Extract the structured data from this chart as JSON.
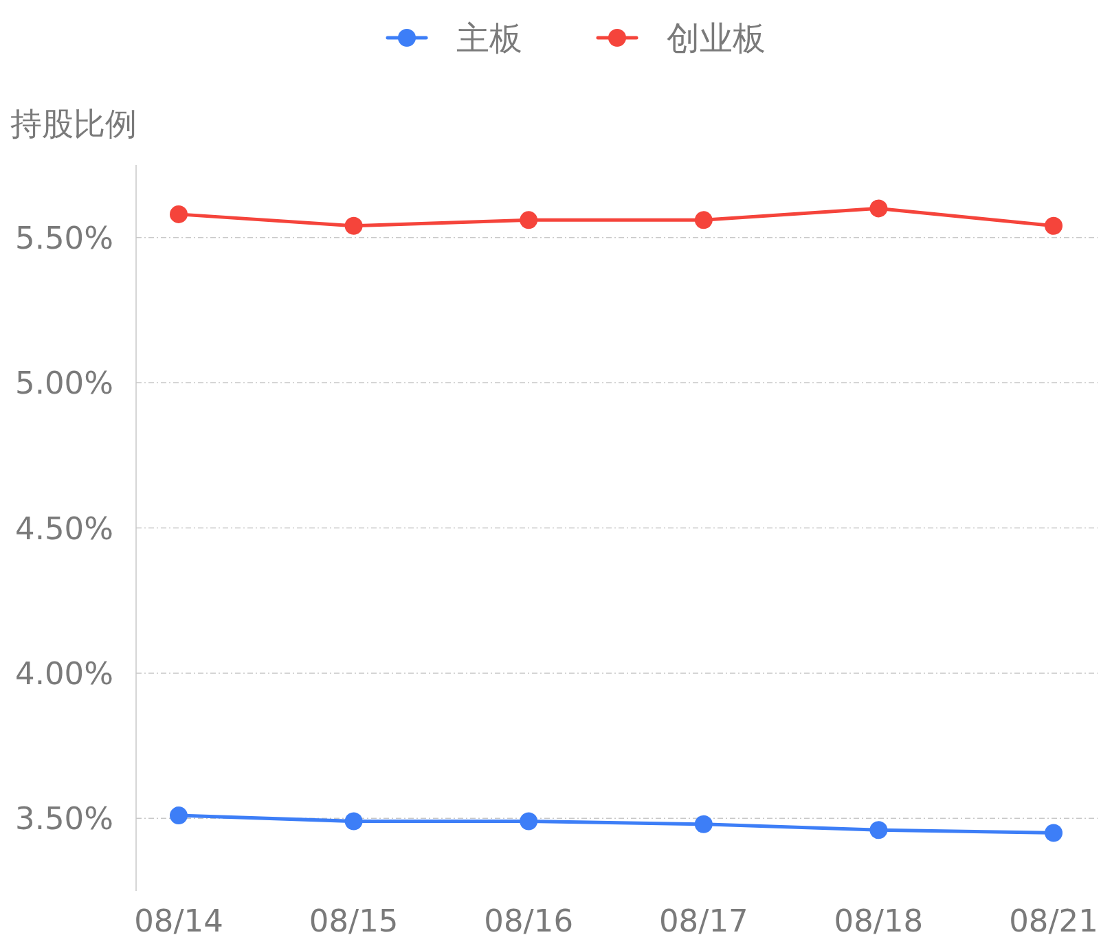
{
  "chart_data": {
    "type": "line",
    "ylabel": "持股比例",
    "categories": [
      "08/14",
      "08/15",
      "08/16",
      "08/17",
      "08/18",
      "08/21"
    ],
    "series": [
      {
        "name": "主板",
        "color": "#3d7ef7",
        "values": [
          3.51,
          3.49,
          3.49,
          3.48,
          3.46,
          3.45
        ]
      },
      {
        "name": "创业板",
        "color": "#f5443b",
        "values": [
          5.58,
          5.54,
          5.56,
          5.56,
          5.6,
          5.54
        ]
      }
    ],
    "ylim": [
      3.25,
      5.75
    ],
    "yticks": [
      {
        "value": 3.5,
        "label": "3.50%"
      },
      {
        "value": 4.0,
        "label": "4.00%"
      },
      {
        "value": 4.5,
        "label": "4.50%"
      },
      {
        "value": 5.0,
        "label": "5.00%"
      },
      {
        "value": 5.5,
        "label": "5.50%"
      }
    ],
    "grid": "y",
    "legend": "top",
    "marker": "circle",
    "line_style": "solid"
  }
}
